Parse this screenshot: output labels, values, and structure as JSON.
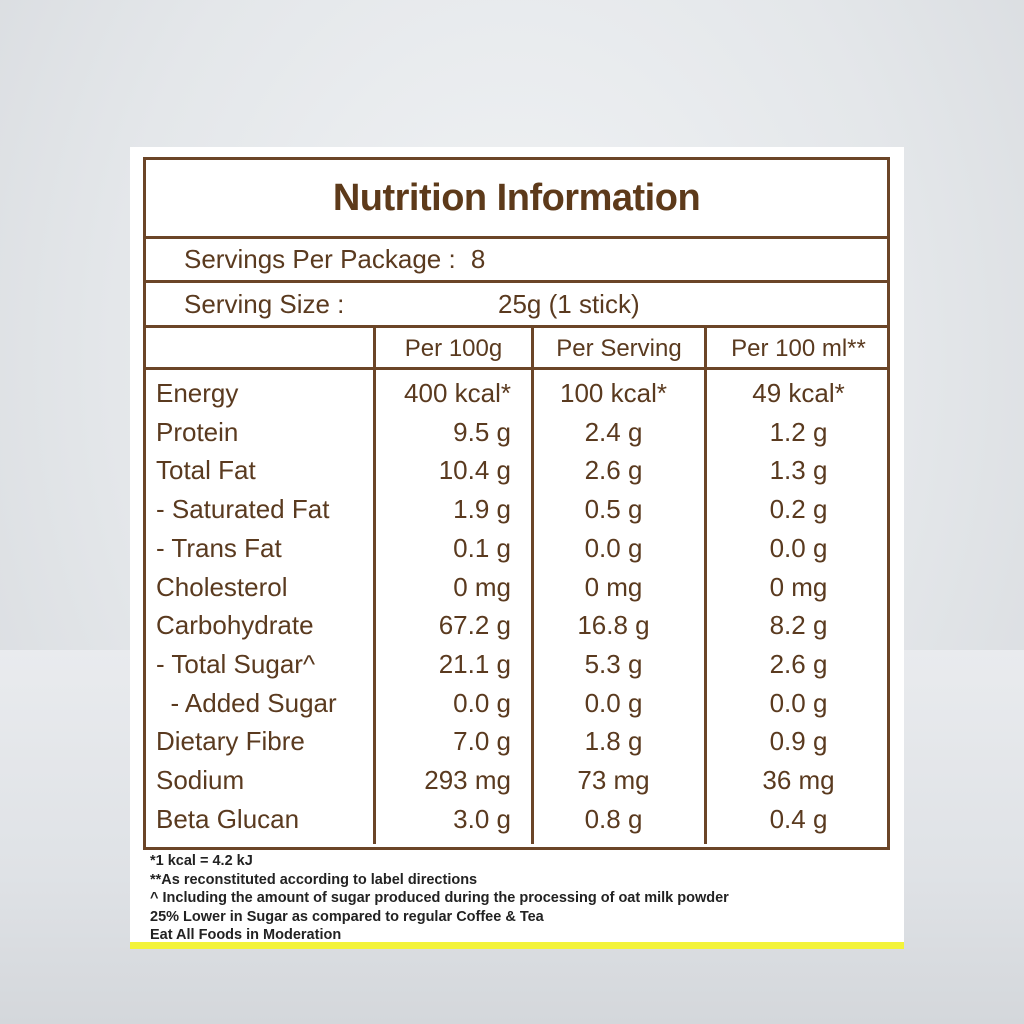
{
  "title": "Nutrition Information",
  "servings_per_package": {
    "label": "Servings Per Package : ",
    "value": "8"
  },
  "serving_size": {
    "label": "Serving Size :",
    "value": "25g (1 stick)"
  },
  "columns": [
    "",
    "Per 100g",
    "Per Serving",
    "Per 100 ml**"
  ],
  "rows": [
    {
      "name": "Energy",
      "per100g": "400 kcal*",
      "perServing": "100 kcal*",
      "per100ml": "49 kcal*"
    },
    {
      "name": "Protein",
      "per100g": "9.5 g",
      "perServing": "2.4 g",
      "per100ml": "1.2 g"
    },
    {
      "name": "Total Fat",
      "per100g": "10.4 g",
      "perServing": "2.6 g",
      "per100ml": "1.3 g"
    },
    {
      "name": "- Saturated Fat",
      "per100g": "1.9 g",
      "perServing": "0.5 g",
      "per100ml": "0.2 g"
    },
    {
      "name": "- Trans Fat",
      "per100g": "0.1 g",
      "perServing": "0.0 g",
      "per100ml": "0.0 g"
    },
    {
      "name": "Cholesterol",
      "per100g": "0 mg",
      "perServing": "0 mg",
      "per100ml": "0 mg"
    },
    {
      "name": "Carbohydrate",
      "per100g": "67.2 g",
      "perServing": "16.8 g",
      "per100ml": "8.2 g"
    },
    {
      "name": "- Total Sugar^",
      "per100g": "21.1 g",
      "perServing": "5.3 g",
      "per100ml": "2.6 g"
    },
    {
      "name": "  - Added Sugar",
      "per100g": "0.0 g",
      "perServing": "0.0 g",
      "per100ml": "0.0 g"
    },
    {
      "name": "Dietary Fibre",
      "per100g": "7.0 g",
      "perServing": "1.8 g",
      "per100ml": "0.9 g"
    },
    {
      "name": "Sodium",
      "per100g": "293 mg",
      "perServing": "73 mg",
      "per100ml": "36 mg"
    },
    {
      "name": "Beta Glucan",
      "per100g": "3.0 g",
      "perServing": "0.8 g",
      "per100ml": "0.4 g"
    }
  ],
  "footnotes": [
    "*1 kcal = 4.2 kJ",
    "**As reconstituted according to label directions",
    "^ Including the amount of sugar produced during the processing of oat milk powder",
    "25% Lower in Sugar as compared to regular Coffee & Tea",
    "Eat All Foods in Moderation"
  ],
  "colors": {
    "text": "#5a3a1f",
    "border": "#6b4528",
    "accent": "#f3f33a"
  }
}
